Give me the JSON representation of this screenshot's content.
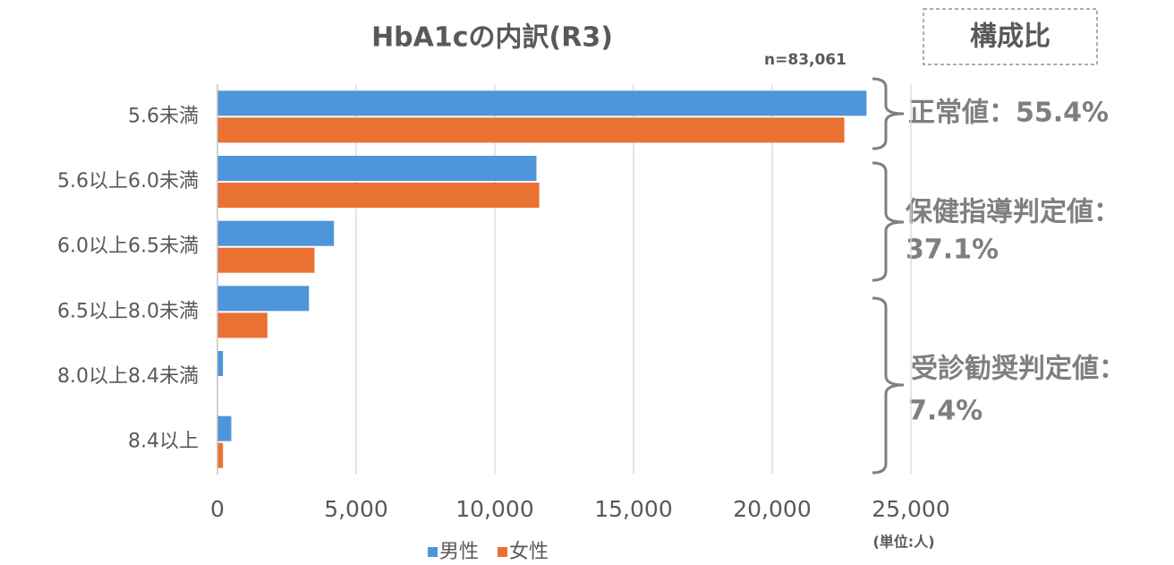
{
  "chart_data": {
    "type": "barh",
    "title": "HbA1cの内訳(R3)",
    "categories": [
      "5.6未満",
      "5.6以上6.0未満",
      "6.0以上6.5未満",
      "6.5以上8.0未満",
      "8.0以上8.4未満",
      "8.4以上"
    ],
    "series": [
      {
        "name": "男性",
        "color": "#4e95d9",
        "values": [
          23400,
          11500,
          4200,
          3300,
          200,
          500
        ]
      },
      {
        "name": "女性",
        "color": "#e97132",
        "values": [
          22600,
          11600,
          3500,
          1800,
          0,
          200
        ]
      }
    ],
    "xlim": [
      0,
      25000
    ],
    "xticks": [
      0,
      {
        "value": 5000,
        "label": "5,000"
      },
      {
        "value": 10000,
        "label": "10,000"
      },
      {
        "value": 15000,
        "label": "15,000"
      },
      {
        "value": 20000,
        "label": "20,000"
      },
      {
        "value": 25000,
        "label": "25,000"
      }
    ],
    "grid": true,
    "legend": "bottom",
    "note_n": "n=83,061",
    "box_label": "構成比",
    "unit_label": "(単位:人)",
    "annotations": [
      "正常値：55.4%",
      "保健指導判定値：",
      "37.1%",
      "受診勧奨判定値：",
      "7.4%"
    ]
  }
}
